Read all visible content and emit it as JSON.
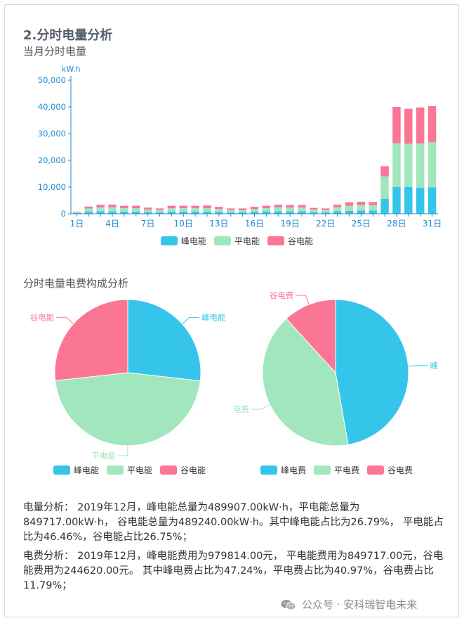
{
  "section_title": "2.分时电量分析",
  "bar_chart": {
    "subtitle": "当月分时电量"
  },
  "pie_section": {
    "subtitle": "分时电量电费构成分析"
  },
  "colors": {
    "peak": "#36c5ea",
    "flat": "#a2e6be",
    "valley": "#fb7595",
    "axis": "#1f8bd0"
  },
  "chart_data": [
    {
      "type": "bar",
      "stacked": true,
      "title": "当月分时电量",
      "ylabel": "kW.h",
      "ylim": [
        0,
        50000
      ],
      "yticks": [
        "0",
        "10,000",
        "20,000",
        "30,000",
        "40,000",
        "50,000"
      ],
      "categories": [
        "1日",
        "2日",
        "3日",
        "4日",
        "5日",
        "6日",
        "7日",
        "8日",
        "9日",
        "10日",
        "11日",
        "12日",
        "13日",
        "14日",
        "15日",
        "16日",
        "17日",
        "18日",
        "19日",
        "20日",
        "21日",
        "22日",
        "23日",
        "24日",
        "25日",
        "26日",
        "27日",
        "28日",
        "29日",
        "30日",
        "31日"
      ],
      "xtick_labels": [
        "1日",
        "4日",
        "7日",
        "10日",
        "13日",
        "16日",
        "19日",
        "22日",
        "25日",
        "28日",
        "31日"
      ],
      "series": [
        {
          "name": "峰电能",
          "values": [
            300,
            800,
            900,
            900,
            800,
            800,
            600,
            500,
            800,
            800,
            800,
            800,
            700,
            500,
            500,
            700,
            800,
            900,
            900,
            900,
            600,
            500,
            900,
            1100,
            1200,
            1200,
            5600,
            10000,
            10000,
            9800,
            9900
          ]
        },
        {
          "name": "平电能",
          "values": [
            300,
            1200,
            1500,
            1500,
            1300,
            1300,
            1000,
            900,
            1300,
            1300,
            1300,
            1300,
            1100,
            900,
            900,
            1100,
            1300,
            1500,
            1400,
            1400,
            1000,
            900,
            1500,
            1900,
            2100,
            2000,
            8400,
            16400,
            16200,
            16500,
            16900
          ]
        },
        {
          "name": "谷电能",
          "values": [
            200,
            700,
            1000,
            1000,
            900,
            900,
            700,
            600,
            900,
            900,
            900,
            1000,
            800,
            600,
            600,
            800,
            900,
            1000,
            1000,
            1000,
            600,
            600,
            1000,
            1300,
            1200,
            1200,
            3800,
            13600,
            13100,
            13500,
            13500
          ]
        }
      ],
      "legend": [
        "峰电能",
        "平电能",
        "谷电能"
      ],
      "legend_position": "bottom"
    },
    {
      "type": "pie",
      "title": "",
      "slices": [
        {
          "name": "峰电能",
          "value": 26.79
        },
        {
          "name": "平电能",
          "value": 46.46
        },
        {
          "name": "谷电能",
          "value": 26.75
        }
      ],
      "legend": [
        "峰电能",
        "平电能",
        "谷电能"
      ],
      "legend_position": "bottom"
    },
    {
      "type": "pie",
      "title": "",
      "slices": [
        {
          "name": "峰电费",
          "value": 47.24
        },
        {
          "name": "平电费",
          "value": 40.97
        },
        {
          "name": "谷电费",
          "value": 11.79
        }
      ],
      "visible_labels": [
        "峰",
        "电费",
        "谷电费"
      ],
      "legend": [
        "峰电费",
        "平电费",
        "谷电费"
      ],
      "legend_position": "bottom"
    }
  ],
  "analysis": {
    "energy": "电量分析： 2019年12月，峰电能总量为489907.00kW·h，平电能总量为849717.00kW·h， 谷电能总量为489240.00kW·h。其中峰电能占比为26.79%， 平电能占比为46.46%，谷电能占比26.75%；",
    "cost": "电费分析： 2019年12月，峰电能费用为979814.00元， 平电能费用为849717.00元，谷电能费用为244620.00元。 其中峰电费占比为47.24%，平电费占比为40.97%，谷电费占比11.79%；"
  },
  "watermark": {
    "text": "公众号 · 安科瑞智电未来",
    "icon": "wechat-icon"
  }
}
